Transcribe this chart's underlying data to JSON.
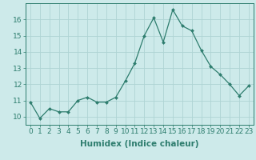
{
  "x": [
    0,
    1,
    2,
    3,
    4,
    5,
    6,
    7,
    8,
    9,
    10,
    11,
    12,
    13,
    14,
    15,
    16,
    17,
    18,
    19,
    20,
    21,
    22,
    23
  ],
  "y": [
    10.9,
    9.9,
    10.5,
    10.3,
    10.3,
    11.0,
    11.2,
    10.9,
    10.9,
    11.2,
    12.2,
    13.3,
    15.0,
    16.1,
    14.6,
    16.6,
    15.6,
    15.3,
    14.1,
    13.1,
    12.6,
    12.0,
    11.3,
    11.9
  ],
  "line_color": "#2e7d6e",
  "marker": "D",
  "marker_size": 2.0,
  "bg_color": "#cdeaea",
  "grid_color": "#aed4d4",
  "xlabel": "Humidex (Indice chaleur)",
  "xlabel_fontsize": 7.5,
  "tick_fontsize": 6.5,
  "ylim": [
    9.5,
    17.0
  ],
  "xlim": [
    -0.5,
    23.5
  ],
  "yticks": [
    10,
    11,
    12,
    13,
    14,
    15,
    16
  ],
  "xticks": [
    0,
    1,
    2,
    3,
    4,
    5,
    6,
    7,
    8,
    9,
    10,
    11,
    12,
    13,
    14,
    15,
    16,
    17,
    18,
    19,
    20,
    21,
    22,
    23
  ]
}
